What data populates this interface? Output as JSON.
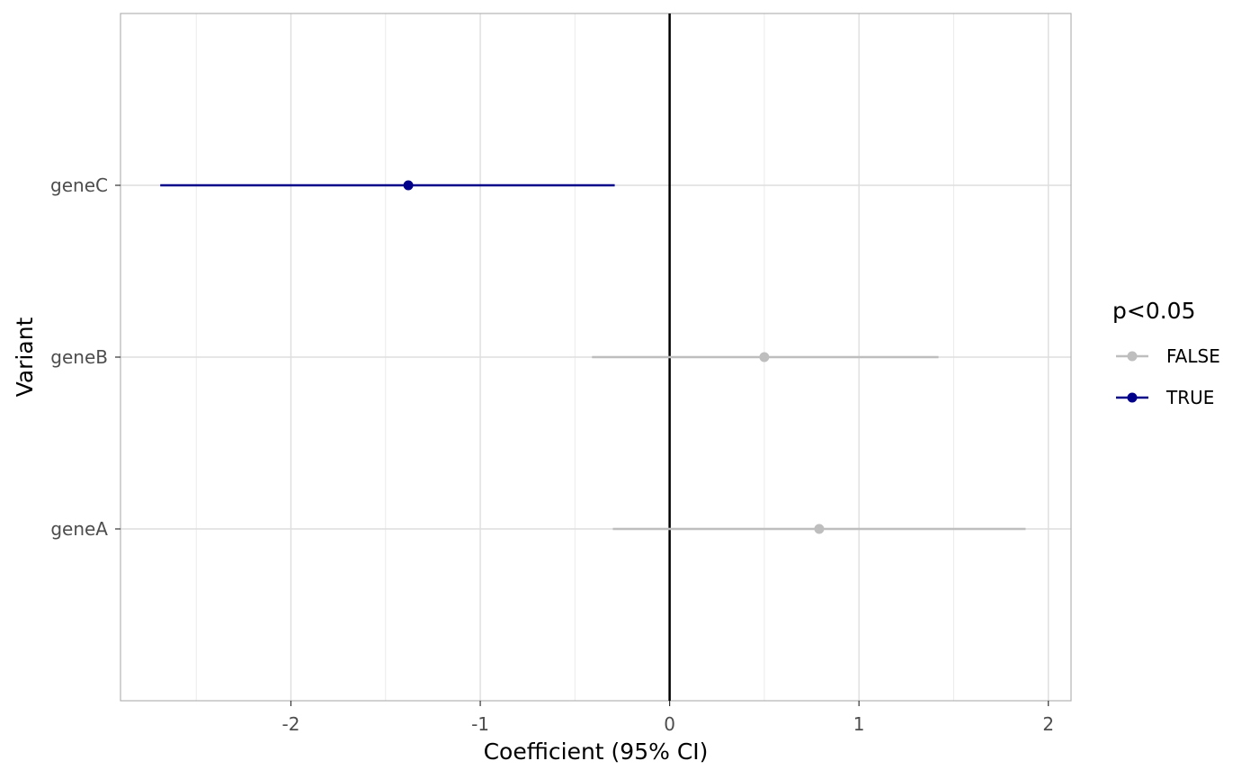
{
  "chart_data": {
    "type": "scatter",
    "subtype": "forest-plot",
    "title": "",
    "xlabel": "Coefficient (95% CI)",
    "ylabel": "Variant",
    "xlim": [
      -2.9,
      2.12
    ],
    "x_ticks": [
      -2,
      -1,
      0,
      1,
      2
    ],
    "x_tick_labels": [
      "-2",
      "-1",
      "0",
      "1",
      "2"
    ],
    "categories": [
      "geneA",
      "geneB",
      "geneC"
    ],
    "reference_line": 0,
    "grid": true,
    "legend": {
      "title": "p<0.05",
      "position": "right",
      "entries": [
        {
          "label": "FALSE",
          "color": "#bebebe"
        },
        {
          "label": "TRUE",
          "color": "#00008b"
        }
      ]
    },
    "points": [
      {
        "variant": "geneA",
        "estimate": 0.79,
        "ci_low": -0.3,
        "ci_high": 1.88,
        "significant": "FALSE"
      },
      {
        "variant": "geneB",
        "estimate": 0.5,
        "ci_low": -0.41,
        "ci_high": 1.42,
        "significant": "FALSE"
      },
      {
        "variant": "geneC",
        "estimate": -1.38,
        "ci_low": -2.69,
        "ci_high": -0.29,
        "significant": "TRUE"
      }
    ]
  }
}
